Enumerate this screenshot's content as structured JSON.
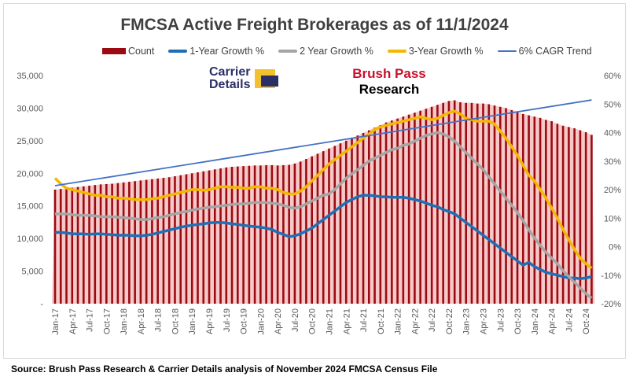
{
  "chart_data": {
    "type": "bar+line",
    "title": "FMCSA Active Freight Brokerages as of 11/1/2024",
    "source": "Source: Brush Pass Research & Carrier Details analysis of November 2024 FMCSA Census File",
    "logos": [
      "Carrier Details",
      "Brush Pass Research"
    ],
    "x_start": "Jan-17",
    "x_end": "Nov-24",
    "x_frequency": "monthly",
    "x_tick_labels": [
      "Jan-17",
      "Apr-17",
      "Jul-17",
      "Oct-17",
      "Jan-18",
      "Apr-18",
      "Jul-18",
      "Oct-18",
      "Jan-19",
      "Apr-19",
      "Jul-19",
      "Oct-19",
      "Jan-20",
      "Apr-20",
      "Jul-20",
      "Oct-20",
      "Jan-21",
      "Apr-21",
      "Jul-21",
      "Oct-21",
      "Jan-22",
      "Apr-22",
      "Jul-22",
      "Oct-22",
      "Jan-23",
      "Apr-23",
      "Jul-23",
      "Oct-23",
      "Jan-24",
      "Apr-24",
      "Jul-24",
      "Oct-24"
    ],
    "y_left": {
      "range": [
        0,
        35000
      ],
      "ticks": [
        "-",
        "5,000",
        "10,000",
        "15,000",
        "20,000",
        "25,000",
        "30,000",
        "35,000"
      ]
    },
    "y_right": {
      "range": [
        -20,
        60
      ],
      "ticks": [
        "-20%",
        "-10%",
        "0%",
        "10%",
        "20%",
        "30%",
        "40%",
        "50%",
        "60%"
      ]
    },
    "legend_position": "top",
    "series": [
      {
        "name": "Count",
        "type": "bar",
        "axis": "left",
        "color": "#9b0a12",
        "area_color": "#f6c9c9",
        "values": [
          17500,
          17600,
          17700,
          17800,
          17900,
          18000,
          18100,
          18200,
          18300,
          18350,
          18400,
          18500,
          18600,
          18700,
          18800,
          18900,
          19000,
          19100,
          19200,
          19300,
          19400,
          19550,
          19700,
          19850,
          20000,
          20150,
          20300,
          20450,
          20600,
          20750,
          20900,
          21000,
          21050,
          21100,
          21150,
          21200,
          21200,
          21250,
          21250,
          21200,
          21250,
          21300,
          21500,
          21800,
          22200,
          22600,
          23000,
          23400,
          23800,
          24200,
          24600,
          25000,
          25400,
          25800,
          26200,
          26600,
          27000,
          27400,
          27800,
          28100,
          28400,
          28700,
          29000,
          29300,
          29600,
          29900,
          30200,
          30500,
          30800,
          31100,
          31200,
          30900,
          30800,
          30800,
          30700,
          30700,
          30600,
          30400,
          30200,
          30000,
          29700,
          29400,
          29100,
          28900,
          28700,
          28500,
          28200,
          28000,
          27600,
          27300,
          27100,
          26900,
          26600,
          26300,
          25900
        ]
      },
      {
        "name": "1-Year Growth %",
        "type": "line",
        "axis": "right",
        "color": "#1f6fb4",
        "values": [
          5,
          5,
          4.8,
          4.5,
          4.5,
          4.5,
          4.3,
          4.5,
          4.5,
          4.3,
          4.2,
          4,
          4,
          4,
          3.8,
          3.8,
          4,
          4.3,
          4.8,
          5.3,
          5.8,
          6.3,
          6.8,
          7.2,
          7.5,
          7.8,
          8,
          8.3,
          8.5,
          8.5,
          8.3,
          8,
          7.8,
          7.5,
          7.2,
          7,
          6.8,
          6.5,
          6,
          5,
          4.3,
          3.5,
          3.8,
          4.5,
          5.5,
          6.5,
          8,
          9.5,
          11,
          12.5,
          14,
          15.5,
          16.5,
          17.5,
          18,
          18,
          17.8,
          17.5,
          17.5,
          17.3,
          17.3,
          17.3,
          17,
          16.5,
          16,
          15.3,
          14.5,
          14,
          13,
          12.3,
          11.5,
          10,
          8.5,
          7,
          5.5,
          4,
          2.5,
          1,
          -0.5,
          -2,
          -3.5,
          -5,
          -6.5,
          -5.5,
          -7,
          -8,
          -9,
          -9.5,
          -10,
          -10.5,
          -11,
          -11,
          -11.2,
          -11,
          -10.5
        ]
      },
      {
        "name": "2 Year Growth %",
        "type": "line",
        "axis": "right",
        "color": "#a5a5a5",
        "values": [
          11.5,
          11.5,
          11.5,
          11.2,
          11,
          11,
          11,
          10.8,
          10.5,
          10.5,
          10.5,
          10.3,
          10.2,
          10,
          9.8,
          9.5,
          9.5,
          9.8,
          10.2,
          10.5,
          11,
          11.5,
          12,
          12.3,
          12.8,
          13.2,
          13.5,
          13.8,
          14,
          14.3,
          14.5,
          14.8,
          15,
          15,
          15.2,
          15.5,
          15.5,
          15.5,
          15.2,
          15,
          14.5,
          13.8,
          13.5,
          14,
          15,
          16,
          17,
          18,
          18.5,
          20,
          22,
          24,
          25.5,
          27,
          28.5,
          30,
          31,
          32,
          33,
          34,
          34.5,
          35.5,
          36,
          37,
          38,
          39,
          39.5,
          40,
          39.5,
          38.5,
          37,
          35,
          33,
          31,
          29,
          27,
          24.5,
          22,
          19.5,
          17,
          14.5,
          12,
          9,
          6,
          3,
          0.5,
          -2,
          -4,
          -6,
          -8.5,
          -10.5,
          -12.5,
          -14.5,
          -16.5,
          -18
        ]
      },
      {
        "name": "3-Year Growth %",
        "type": "line",
        "axis": "right",
        "color": "#f5b800",
        "values": [
          24,
          22,
          20.5,
          20,
          19.5,
          19,
          18.5,
          18,
          18,
          17.5,
          17.5,
          17,
          17,
          16.8,
          16.5,
          16.5,
          16.5,
          16.8,
          17,
          17.5,
          18,
          18.5,
          19,
          19.5,
          20,
          20,
          19.8,
          20,
          20.5,
          21,
          21,
          20.8,
          20.8,
          20.5,
          20.5,
          21,
          21,
          20.5,
          20.5,
          20,
          19,
          18.5,
          18.5,
          19.5,
          21,
          23,
          25,
          27,
          29,
          30.5,
          32,
          33.5,
          35,
          36.5,
          38,
          39.5,
          41,
          42,
          42.5,
          43,
          43.5,
          44,
          44.5,
          45,
          45.5,
          45,
          44.5,
          45,
          46,
          47,
          47.5,
          46.5,
          45,
          44.5,
          44,
          44,
          44,
          43,
          40.5,
          38,
          35,
          32,
          28.5,
          25,
          23,
          20,
          17,
          13.5,
          10,
          6,
          2.5,
          -1,
          -4,
          -6,
          -7.5
        ]
      },
      {
        "name": "6% CAGR Trend",
        "type": "line",
        "axis": "left",
        "color": "#4472c4",
        "x": [
          "Jan-17",
          "Nov-24"
        ],
        "values": [
          18100,
          31250
        ]
      }
    ]
  }
}
